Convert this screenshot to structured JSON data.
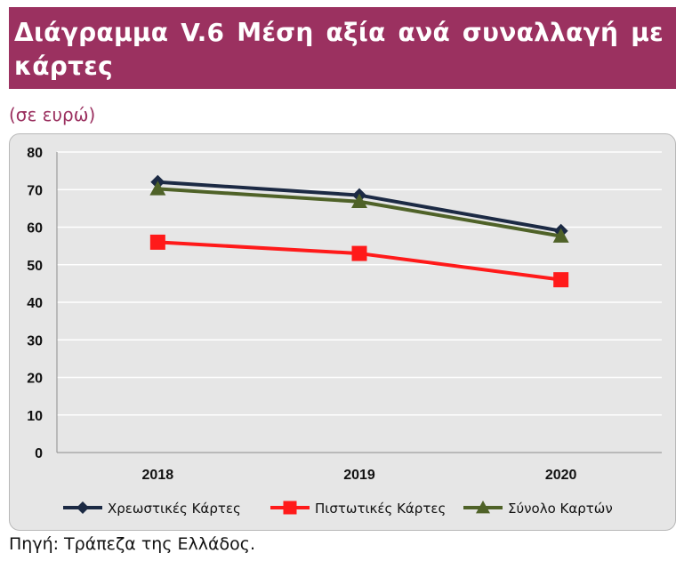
{
  "header": {
    "title": "Διάγραμμα V.6 Μέση αξία ανά συναλλαγή με κάρτες",
    "subtitle": "(σε ευρώ)"
  },
  "footer": {
    "source": "Πηγή: Τράπεζα της Ελλάδος."
  },
  "colors": {
    "title_bg": "#9b3160",
    "chart_bg": "#e6e6e6",
    "series": [
      "#1c2a44",
      "#ff1a1a",
      "#4f6228"
    ]
  },
  "chart_data": {
    "type": "line",
    "categories": [
      "2018",
      "2019",
      "2020"
    ],
    "series": [
      {
        "name": "Χρεωστικές Κάρτες",
        "marker": "diamond",
        "values": [
          72,
          68.5,
          59
        ]
      },
      {
        "name": "Πιστωτικές Κάρτες",
        "marker": "square",
        "values": [
          56,
          53,
          46
        ]
      },
      {
        "name": "Σύνολο Καρτών",
        "marker": "triangle",
        "values": [
          70.2,
          66.8,
          57.6
        ]
      }
    ],
    "ylim": [
      0,
      80
    ],
    "yticks": [
      0,
      10,
      20,
      30,
      40,
      50,
      60,
      70,
      80
    ],
    "grid": true,
    "legend": "bottom"
  }
}
